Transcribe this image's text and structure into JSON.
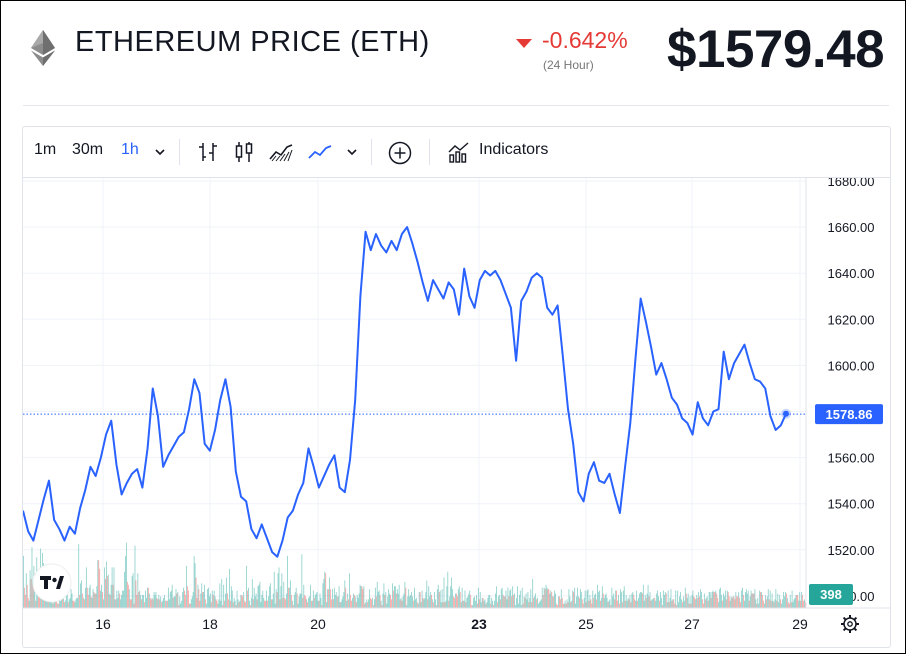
{
  "header": {
    "title": "ETHEREUM PRICE (ETH)",
    "change_pct": "-0.642%",
    "change_period": "(24 Hour)",
    "price": "$1579.48",
    "logo_icon": "ethereum-logo-icon"
  },
  "toolbar": {
    "intervals": [
      "1m",
      "30m",
      "1h"
    ],
    "active_interval": "1h",
    "indicators_label": "Indicators",
    "icons": [
      "interval-dropdown-icon",
      "bar-chart-icon",
      "candlestick-icon",
      "area-chart-icon",
      "line-chart-icon",
      "chart-type-dropdown-icon",
      "compare-add-icon",
      "indicators-icon"
    ]
  },
  "chart_data": {
    "type": "line",
    "title": "",
    "xlabel": "",
    "ylabel": "",
    "ylim": [
      1505,
      1683
    ],
    "y_ticks": [
      "1680.00",
      "1660.00",
      "1640.00",
      "1620.00",
      "1600.00",
      "1580.00",
      "1560.00",
      "1540.00",
      "1520.00",
      "1500.00"
    ],
    "x_ticks": [
      "16",
      "18",
      "20",
      "23",
      "25",
      "27",
      "29"
    ],
    "x_tick_bold": [
      "23"
    ],
    "last_price_label": "1578.86",
    "last_volume_label": "398",
    "grid": true,
    "line_color": "#2962ff",
    "volume_up_color": "#26a69a",
    "volume_down_color": "#ef5350",
    "price_series": [
      1537,
      1528,
      1524,
      1533,
      1542,
      1550,
      1533,
      1529,
      1524,
      1530,
      1527,
      1538,
      1546,
      1556,
      1552,
      1560,
      1570,
      1576,
      1557,
      1544,
      1549,
      1553,
      1555,
      1547,
      1564,
      1590,
      1578,
      1556,
      1561,
      1565,
      1569,
      1571,
      1581,
      1594,
      1588,
      1566,
      1563,
      1572,
      1585,
      1594,
      1582,
      1554,
      1543,
      1541,
      1529,
      1525,
      1531,
      1525,
      1519,
      1517,
      1524,
      1534,
      1537,
      1544,
      1549,
      1564,
      1556,
      1547,
      1552,
      1557,
      1561,
      1547,
      1545,
      1559,
      1585,
      1630,
      1658,
      1650,
      1657,
      1652,
      1649,
      1654,
      1650,
      1657,
      1660,
      1653,
      1645,
      1636,
      1628,
      1637,
      1633,
      1629,
      1636,
      1633,
      1622,
      1642,
      1630,
      1625,
      1637,
      1641,
      1639,
      1641,
      1637,
      1631,
      1625,
      1602,
      1628,
      1632,
      1638,
      1640,
      1638,
      1625,
      1622,
      1626,
      1604,
      1581,
      1566,
      1545,
      1541,
      1553,
      1558,
      1550,
      1549,
      1553,
      1544,
      1536,
      1556,
      1575,
      1603,
      1629,
      1619,
      1608,
      1596,
      1601,
      1594,
      1586,
      1583,
      1577,
      1575,
      1570,
      1584,
      1577,
      1574,
      1580,
      1581,
      1606,
      1594,
      1601,
      1605,
      1609,
      1601,
      1594,
      1593,
      1590,
      1578,
      1572,
      1574,
      1579
    ],
    "volume_series": [
      36,
      14,
      9,
      24,
      16,
      7,
      5,
      26,
      20,
      42,
      18,
      29,
      11,
      5,
      35,
      22,
      13,
      8,
      41,
      20,
      38,
      31,
      6,
      27,
      11,
      19,
      6,
      10,
      24,
      26,
      10,
      3,
      14,
      20,
      6,
      5,
      3,
      3,
      6,
      5,
      24,
      8,
      10,
      4,
      5,
      16,
      21,
      4,
      6,
      7,
      13,
      10,
      5,
      5,
      4,
      6,
      7,
      7,
      44,
      9,
      17,
      19,
      10,
      7,
      6,
      14,
      28,
      14,
      9,
      14,
      16,
      8,
      7,
      13,
      11,
      10,
      10,
      15,
      33,
      33,
      27,
      12,
      16,
      11,
      6,
      28,
      20,
      32,
      22,
      23,
      10,
      9,
      16,
      28,
      16,
      28,
      6,
      6,
      12,
      7,
      12,
      10,
      6,
      9,
      12,
      12,
      25,
      36,
      45,
      18,
      16,
      13,
      6,
      6,
      22,
      24,
      3,
      43,
      19,
      9,
      24,
      11,
      12,
      9,
      6,
      9,
      9,
      4,
      12,
      7,
      14,
      14,
      10,
      7,
      6,
      7,
      6,
      11,
      9,
      11,
      7,
      6,
      9,
      6,
      8,
      4,
      5,
      7,
      9,
      5,
      5,
      5,
      14,
      6,
      11,
      12,
      16,
      7,
      8,
      8,
      13,
      10,
      11,
      2,
      8,
      3,
      5,
      11,
      14,
      12,
      9,
      29,
      15,
      12,
      3,
      3,
      6,
      8,
      11,
      36,
      31,
      21,
      7,
      16,
      13,
      5,
      10,
      17,
      11,
      11,
      16,
      6,
      3,
      13,
      14,
      8,
      10,
      4,
      12,
      9,
      12,
      8,
      6,
      5,
      3,
      6,
      17,
      5,
      20,
      2,
      16,
      5,
      10,
      21,
      10,
      6,
      27,
      5,
      15,
      12,
      4,
      7,
      5,
      2,
      12,
      6,
      4,
      5,
      9,
      9,
      8,
      11,
      5,
      4,
      29,
      12,
      14,
      5,
      2,
      7,
      20,
      6,
      14,
      8,
      10,
      6,
      15,
      16,
      18,
      4,
      9,
      12,
      7,
      5,
      5,
      12,
      5,
      8,
      15,
      17,
      6,
      6,
      10,
      25,
      3,
      13,
      11,
      24,
      28,
      6,
      15,
      24,
      7,
      18,
      7,
      6,
      10,
      36,
      14,
      14,
      19,
      9,
      5,
      2,
      9,
      11,
      14,
      10,
      3,
      8,
      10,
      10,
      37,
      7,
      16,
      9,
      8,
      6,
      4,
      7,
      8,
      16,
      5,
      5,
      12,
      7,
      9,
      10,
      11,
      5,
      5,
      10,
      7,
      2,
      17,
      20,
      25,
      24,
      4,
      13,
      13,
      21,
      13,
      6,
      13,
      6,
      14,
      9,
      11,
      8,
      8,
      15,
      4,
      4,
      6,
      8,
      11,
      19,
      14,
      5,
      10,
      6,
      24,
      9,
      5,
      7,
      10,
      9,
      8,
      4,
      9,
      7,
      10,
      16,
      15,
      15,
      13,
      15,
      3,
      4,
      6,
      4,
      6,
      13,
      7,
      6,
      7,
      2,
      6,
      14,
      8,
      18,
      11,
      12,
      9,
      5,
      2,
      10,
      17,
      9,
      11,
      3,
      8,
      13,
      10,
      9,
      6,
      17,
      12,
      15,
      15,
      10,
      13,
      10,
      16,
      6,
      7,
      5,
      8,
      10,
      18,
      14,
      2,
      8,
      13,
      8,
      9,
      11,
      8,
      5,
      14,
      6,
      7,
      4,
      3,
      11,
      11,
      4,
      12,
      7,
      6,
      7,
      11,
      19,
      6,
      15,
      8,
      11,
      9,
      6,
      4,
      11,
      6,
      2,
      13,
      16,
      11,
      12,
      4,
      13,
      4,
      21,
      4,
      5,
      15,
      25,
      5,
      8,
      15,
      21,
      13,
      8,
      7,
      10,
      10,
      8,
      13,
      15,
      11,
      4,
      14,
      5,
      5,
      12,
      4,
      7,
      8,
      10,
      12,
      9,
      2,
      2,
      7,
      8,
      5,
      9,
      3,
      14,
      6,
      11,
      4,
      7,
      7,
      5,
      6,
      3,
      4,
      7,
      9,
      9,
      3,
      7,
      5,
      2,
      5,
      10,
      15,
      4,
      8,
      9,
      6,
      13,
      14,
      9,
      8,
      8,
      12,
      6,
      14,
      8,
      12,
      13,
      8,
      15,
      9,
      10,
      2,
      7,
      15,
      3,
      9,
      12,
      2,
      14,
      3,
      8,
      7,
      10,
      6,
      11,
      4,
      7,
      13,
      4,
      20,
      7,
      8,
      10,
      6,
      7,
      3,
      4,
      5,
      6,
      14,
      9,
      14,
      13,
      16,
      14,
      13,
      13,
      10,
      12,
      11,
      8,
      8,
      12,
      10,
      3,
      2,
      8,
      8,
      6,
      13,
      7,
      3,
      3,
      5,
      3,
      6,
      4,
      13,
      8,
      4,
      5,
      12,
      11,
      14,
      3,
      8,
      14,
      8,
      7,
      13,
      11,
      6,
      3,
      7,
      12,
      4,
      12,
      13,
      5,
      9,
      6,
      3,
      12,
      7,
      9,
      10,
      6,
      16,
      11,
      12,
      5,
      7,
      15,
      10,
      7,
      9,
      10,
      7,
      4,
      5,
      6,
      2,
      14,
      8,
      10,
      6,
      12,
      12,
      5,
      9,
      3,
      13,
      11,
      4,
      12,
      15,
      5,
      9,
      5,
      7,
      6,
      9,
      4,
      10,
      11,
      9,
      6,
      5,
      12,
      5,
      7,
      10,
      11,
      11,
      10,
      16,
      5,
      9,
      7,
      10,
      16,
      8,
      11,
      5,
      6,
      6,
      7,
      7,
      5,
      10,
      12,
      8,
      5,
      11,
      7,
      2,
      12,
      9,
      11,
      10,
      4,
      12,
      4,
      7,
      13,
      5,
      6,
      6,
      3,
      12,
      2,
      12,
      4,
      8,
      11,
      6,
      4,
      8,
      5,
      14,
      10,
      7,
      10,
      3,
      8,
      3,
      9,
      12,
      8,
      7,
      6,
      9,
      7,
      11,
      8,
      13,
      11,
      6,
      3,
      10,
      6,
      7,
      8,
      5,
      11,
      11,
      7,
      11,
      12,
      11,
      11,
      12,
      10,
      7,
      4,
      13,
      14,
      9,
      5,
      10,
      8,
      12,
      6,
      12,
      11,
      8,
      5,
      8,
      7,
      8,
      8,
      6,
      11,
      8,
      8,
      11,
      7,
      4,
      12,
      14,
      9,
      5,
      11,
      13,
      10,
      12,
      5,
      8,
      12,
      10,
      10,
      10,
      13,
      6,
      3,
      7,
      3,
      12,
      11,
      11,
      9,
      5,
      3,
      9,
      6,
      8,
      13,
      6,
      12,
      5,
      10,
      5,
      4,
      6,
      13,
      5,
      10,
      4,
      9,
      6,
      3,
      6,
      11,
      8,
      11,
      10,
      7,
      4,
      3,
      9,
      4,
      12,
      4,
      6,
      7,
      9,
      9,
      9,
      5,
      11,
      5,
      11,
      9,
      5,
      6,
      4
    ]
  }
}
